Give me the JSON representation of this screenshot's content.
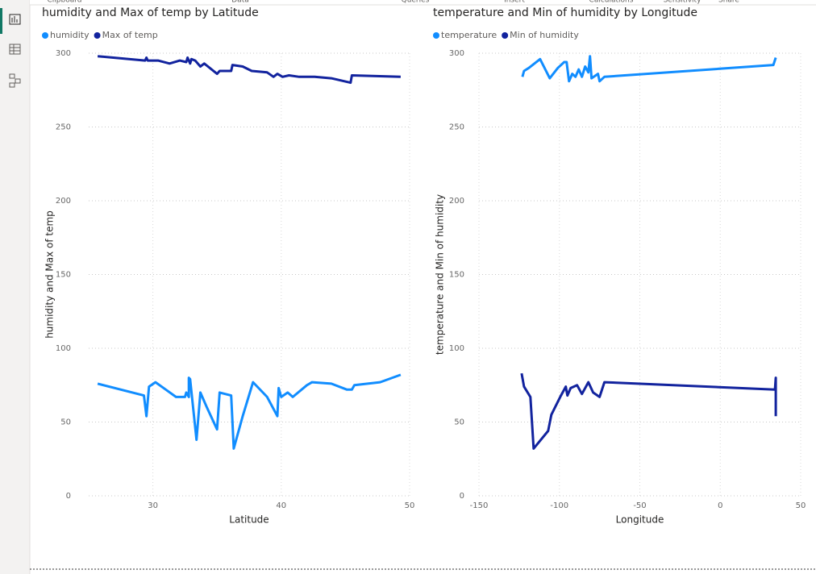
{
  "ribbon_labels": [
    "Clipboard",
    "Data",
    "Queries",
    "Insert",
    "Calculations",
    "Sensitivity",
    "Share"
  ],
  "chart_data": [
    {
      "type": "line",
      "title": "humidity and Max of temp by Latitude",
      "x_label": "Latitude",
      "y_label": "humidity and Max of temp",
      "xlim": [
        25,
        50
      ],
      "xticks": [
        30,
        40,
        50
      ],
      "ylim": [
        0,
        300
      ],
      "yticks": [
        0,
        50,
        100,
        150,
        200,
        250,
        300
      ],
      "grid": true,
      "series": [
        {
          "name": "humidity",
          "color": "#118dff",
          "x": [
            25.7,
            29.3,
            29.5,
            29.7,
            30.2,
            31.0,
            31.8,
            32.5,
            32.6,
            32.8,
            32.8,
            32.9,
            33.4,
            33.7,
            34.2,
            35.0,
            35.2,
            36.1,
            36.3,
            37.0,
            37.8,
            38.9,
            39.7,
            39.8,
            40.0,
            40.5,
            40.9,
            42.0,
            42.4,
            43.9,
            45.1,
            45.5,
            45.7,
            47.7,
            49.3
          ],
          "values": [
            76,
            68,
            54,
            74,
            77,
            72,
            67,
            67,
            70,
            67,
            80,
            79,
            38,
            70,
            60,
            45,
            70,
            68,
            32,
            54,
            77,
            67,
            54,
            73,
            67,
            70,
            67,
            75,
            77,
            76,
            72,
            72,
            75,
            77,
            82
          ]
        },
        {
          "name": "Max of temp",
          "color": "#12239e",
          "x": [
            25.7,
            29.4,
            29.5,
            29.6,
            30.4,
            31.3,
            32.1,
            32.6,
            32.7,
            32.9,
            33.0,
            33.3,
            33.7,
            34.0,
            35.0,
            35.2,
            36.1,
            36.2,
            37.0,
            37.7,
            38.9,
            39.4,
            39.7,
            40.1,
            40.6,
            41.4,
            42.6,
            43.9,
            45.4,
            45.5,
            49.3
          ],
          "values": [
            298,
            295,
            297,
            295,
            295,
            293,
            295,
            294,
            297,
            293,
            296,
            295,
            291,
            293,
            286,
            288,
            288,
            292,
            291,
            288,
            287,
            284,
            286,
            284,
            285,
            284,
            284,
            283,
            280,
            285,
            284
          ]
        }
      ]
    },
    {
      "type": "line",
      "title": "temperature and Min of humidity by Longitude",
      "x_label": "Longitude",
      "y_label": "temperature and Min of humidity",
      "xlim": [
        -150,
        50
      ],
      "xticks": [
        -150,
        -100,
        -50,
        0,
        50
      ],
      "ylim": [
        0,
        300
      ],
      "yticks": [
        0,
        50,
        100,
        150,
        200,
        250,
        300
      ],
      "grid": true,
      "series": [
        {
          "name": "temperature",
          "color": "#118dff",
          "x": [
            -123,
            -122,
            -119,
            -112,
            -106,
            -101,
            -97,
            -95.5,
            -94,
            -92,
            -90,
            -88,
            -86,
            -84,
            -82,
            -81,
            -80,
            -76,
            -75,
            -72,
            33,
            34.5
          ],
          "values": [
            284,
            288,
            290,
            296,
            283,
            290,
            294,
            294,
            281,
            286,
            284,
            289,
            284,
            291,
            287,
            298,
            283,
            286,
            281,
            284,
            292,
            297
          ]
        },
        {
          "name": "Min of humidity",
          "color": "#12239e",
          "x": [
            -123.5,
            -122,
            -118,
            -116,
            -107,
            -105,
            -99,
            -96,
            -95,
            -93,
            -89,
            -86,
            -82,
            -79,
            -75,
            -72,
            34,
            34.5,
            34.5
          ],
          "values": [
            83,
            74,
            67,
            32,
            44,
            55,
            68,
            74,
            68,
            73,
            75,
            69,
            77,
            70,
            67,
            77,
            72,
            80,
            54
          ]
        }
      ]
    }
  ]
}
